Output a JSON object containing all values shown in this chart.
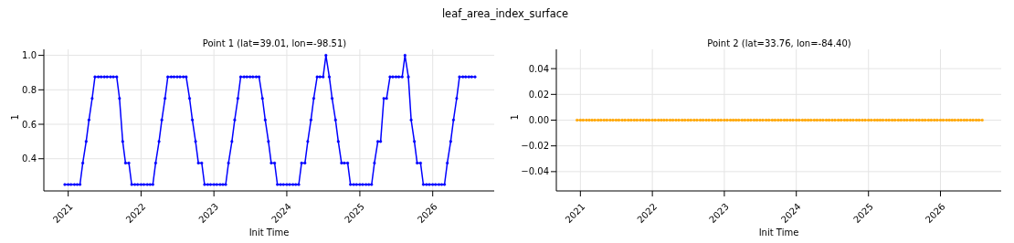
{
  "chart_data": [
    {
      "type": "line",
      "title": "Point 1 (lat=39.01, lon=-98.51)",
      "annotations": [
        "leaf_area_index_surface"
      ],
      "xlabel": "Init Time",
      "ylabel": "1",
      "x": [
        "2020-12-15",
        "2021-01-01",
        "2021-01-15",
        "2021-02-01",
        "2021-02-15",
        "2021-03-01",
        "2021-03-15",
        "2021-04-01",
        "2021-04-15",
        "2021-05-01",
        "2021-05-15",
        "2021-06-01",
        "2021-06-15",
        "2021-07-01",
        "2021-07-15",
        "2021-08-01",
        "2021-08-15",
        "2021-09-01",
        "2021-09-15",
        "2021-10-01",
        "2021-10-15",
        "2021-11-01",
        "2021-11-15",
        "2021-12-01",
        "2021-12-15",
        "2022-01-01",
        "2022-01-15",
        "2022-02-01",
        "2022-02-15",
        "2022-03-01",
        "2022-03-15",
        "2022-04-01",
        "2022-04-15",
        "2022-05-01",
        "2022-05-15",
        "2022-06-01",
        "2022-06-15",
        "2022-07-01",
        "2022-07-15",
        "2022-08-01",
        "2022-08-15",
        "2022-09-01",
        "2022-09-15",
        "2022-10-01",
        "2022-10-15",
        "2022-11-01",
        "2022-11-15",
        "2022-12-01",
        "2022-12-15",
        "2023-01-01",
        "2023-01-15",
        "2023-02-01",
        "2023-02-15",
        "2023-03-01",
        "2023-03-15",
        "2023-04-01",
        "2023-04-15",
        "2023-05-01",
        "2023-05-15",
        "2023-06-01",
        "2023-06-15",
        "2023-07-01",
        "2023-07-15",
        "2023-08-01",
        "2023-08-15",
        "2023-09-01",
        "2023-09-15",
        "2023-10-01",
        "2023-10-15",
        "2023-11-01",
        "2023-11-15",
        "2023-12-01",
        "2023-12-15",
        "2024-01-01",
        "2024-01-15",
        "2024-02-01",
        "2024-02-15",
        "2024-03-01",
        "2024-03-15",
        "2024-04-01",
        "2024-04-15",
        "2024-05-01",
        "2024-05-15",
        "2024-06-01",
        "2024-06-15",
        "2024-07-01",
        "2024-07-15",
        "2024-08-01",
        "2024-08-15",
        "2024-09-01",
        "2024-09-15",
        "2024-10-01",
        "2024-10-15",
        "2024-11-01",
        "2024-11-15",
        "2024-12-01",
        "2024-12-15",
        "2025-01-01",
        "2025-01-15",
        "2025-02-01",
        "2025-02-15",
        "2025-03-01",
        "2025-03-15",
        "2025-04-01",
        "2025-04-15",
        "2025-05-01",
        "2025-05-15",
        "2025-06-01",
        "2025-06-15",
        "2025-07-01",
        "2025-07-15",
        "2025-08-01",
        "2025-08-15",
        "2025-09-01",
        "2025-09-15",
        "2025-10-01",
        "2025-10-15",
        "2025-11-01",
        "2025-11-15",
        "2025-12-01",
        "2025-12-15",
        "2026-01-01",
        "2026-01-15",
        "2026-02-01",
        "2026-02-15",
        "2026-03-01",
        "2026-03-15",
        "2026-04-01",
        "2026-04-15",
        "2026-05-01",
        "2026-05-15",
        "2026-06-01",
        "2026-06-15",
        "2026-07-01",
        "2026-07-15",
        "2026-08-01"
      ],
      "series": [
        {
          "color": "#0000ff",
          "values": [
            0.25,
            0.25,
            0.25,
            0.25,
            0.25,
            0.25,
            0.375,
            0.5,
            0.625,
            0.75,
            0.875,
            0.875,
            0.875,
            0.875,
            0.875,
            0.875,
            0.875,
            0.875,
            0.75,
            0.5,
            0.375,
            0.375,
            0.25,
            0.25,
            0.25,
            0.25,
            0.25,
            0.25,
            0.25,
            0.25,
            0.375,
            0.5,
            0.625,
            0.75,
            0.875,
            0.875,
            0.875,
            0.875,
            0.875,
            0.875,
            0.875,
            0.75,
            0.625,
            0.5,
            0.375,
            0.375,
            0.25,
            0.25,
            0.25,
            0.25,
            0.25,
            0.25,
            0.25,
            0.25,
            0.375,
            0.5,
            0.625,
            0.75,
            0.875,
            0.875,
            0.875,
            0.875,
            0.875,
            0.875,
            0.875,
            0.75,
            0.625,
            0.5,
            0.375,
            0.375,
            0.25,
            0.25,
            0.25,
            0.25,
            0.25,
            0.25,
            0.25,
            0.25,
            0.375,
            0.375,
            0.5,
            0.625,
            0.75,
            0.875,
            0.875,
            0.875,
            1.0,
            0.875,
            0.75,
            0.625,
            0.5,
            0.375,
            0.375,
            0.375,
            0.25,
            0.25,
            0.25,
            0.25,
            0.25,
            0.25,
            0.25,
            0.25,
            0.375,
            0.5,
            0.5,
            0.75,
            0.75,
            0.875,
            0.875,
            0.875,
            0.875,
            0.875,
            1.0,
            0.875,
            0.625,
            0.5,
            0.375,
            0.375,
            0.25,
            0.25,
            0.25,
            0.25,
            0.25,
            0.25,
            0.25,
            0.25,
            0.375,
            0.5,
            0.625,
            0.75,
            0.875,
            0.875,
            0.875,
            0.875,
            0.875,
            0.875
          ]
        }
      ],
      "xlim": [
        "2020-09-01",
        "2026-11-05"
      ],
      "xticks": [
        "2021",
        "2022",
        "2023",
        "2024",
        "2025",
        "2026"
      ],
      "ylim": [
        0.213,
        1.035
      ],
      "yticks": [
        {
          "value": 0.4,
          "label": "0.4"
        },
        {
          "value": 0.6,
          "label": "0.6"
        },
        {
          "value": 0.8,
          "label": "0.8"
        },
        {
          "value": 1,
          "label": "1.0"
        }
      ],
      "grid": true,
      "legend": false,
      "marker": "circle",
      "line_style": "solid"
    },
    {
      "type": "line",
      "title": "Point 2 (lat=33.76, lon=-84.40)",
      "xlabel": "Init Time",
      "ylabel": "1",
      "x": [
        "2020-12-15",
        "2021-01-01",
        "2021-01-15",
        "2021-02-01",
        "2021-02-15",
        "2021-03-01",
        "2021-03-15",
        "2021-04-01",
        "2021-04-15",
        "2021-05-01",
        "2021-05-15",
        "2021-06-01",
        "2021-06-15",
        "2021-07-01",
        "2021-07-15",
        "2021-08-01",
        "2021-08-15",
        "2021-09-01",
        "2021-09-15",
        "2021-10-01",
        "2021-10-15",
        "2021-11-01",
        "2021-11-15",
        "2021-12-01",
        "2021-12-15",
        "2022-01-01",
        "2022-01-15",
        "2022-02-01",
        "2022-02-15",
        "2022-03-01",
        "2022-03-15",
        "2022-04-01",
        "2022-04-15",
        "2022-05-01",
        "2022-05-15",
        "2022-06-01",
        "2022-06-15",
        "2022-07-01",
        "2022-07-15",
        "2022-08-01",
        "2022-08-15",
        "2022-09-01",
        "2022-09-15",
        "2022-10-01",
        "2022-10-15",
        "2022-11-01",
        "2022-11-15",
        "2022-12-01",
        "2022-12-15",
        "2023-01-01",
        "2023-01-15",
        "2023-02-01",
        "2023-02-15",
        "2023-03-01",
        "2023-03-15",
        "2023-04-01",
        "2023-04-15",
        "2023-05-01",
        "2023-05-15",
        "2023-06-01",
        "2023-06-15",
        "2023-07-01",
        "2023-07-15",
        "2023-08-01",
        "2023-08-15",
        "2023-09-01",
        "2023-09-15",
        "2023-10-01",
        "2023-10-15",
        "2023-11-01",
        "2023-11-15",
        "2023-12-01",
        "2023-12-15",
        "2024-01-01",
        "2024-01-15",
        "2024-02-01",
        "2024-02-15",
        "2024-03-01",
        "2024-03-15",
        "2024-04-01",
        "2024-04-15",
        "2024-05-01",
        "2024-05-15",
        "2024-06-01",
        "2024-06-15",
        "2024-07-01",
        "2024-07-15",
        "2024-08-01",
        "2024-08-15",
        "2024-09-01",
        "2024-09-15",
        "2024-10-01",
        "2024-10-15",
        "2024-11-01",
        "2024-11-15",
        "2024-12-01",
        "2024-12-15",
        "2025-01-01",
        "2025-01-15",
        "2025-02-01",
        "2025-02-15",
        "2025-03-01",
        "2025-03-15",
        "2025-04-01",
        "2025-04-15",
        "2025-05-01",
        "2025-05-15",
        "2025-06-01",
        "2025-06-15",
        "2025-07-01",
        "2025-07-15",
        "2025-08-01",
        "2025-08-15",
        "2025-09-01",
        "2025-09-15",
        "2025-10-01",
        "2025-10-15",
        "2025-11-01",
        "2025-11-15",
        "2025-12-01",
        "2025-12-15",
        "2026-01-01",
        "2026-01-15",
        "2026-02-01",
        "2026-02-15",
        "2026-03-01",
        "2026-03-15",
        "2026-04-01",
        "2026-04-15",
        "2026-05-01",
        "2026-05-15",
        "2026-06-01",
        "2026-06-15",
        "2026-07-01",
        "2026-07-15",
        "2026-08-01"
      ],
      "series": [
        {
          "color": "#ffa500",
          "values": [
            0,
            0,
            0,
            0,
            0,
            0,
            0,
            0,
            0,
            0,
            0,
            0,
            0,
            0,
            0,
            0,
            0,
            0,
            0,
            0,
            0,
            0,
            0,
            0,
            0,
            0,
            0,
            0,
            0,
            0,
            0,
            0,
            0,
            0,
            0,
            0,
            0,
            0,
            0,
            0,
            0,
            0,
            0,
            0,
            0,
            0,
            0,
            0,
            0,
            0,
            0,
            0,
            0,
            0,
            0,
            0,
            0,
            0,
            0,
            0,
            0,
            0,
            0,
            0,
            0,
            0,
            0,
            0,
            0,
            0,
            0,
            0,
            0,
            0,
            0,
            0,
            0,
            0,
            0,
            0,
            0,
            0,
            0,
            0,
            0,
            0,
            0,
            0,
            0,
            0,
            0,
            0,
            0,
            0,
            0,
            0,
            0,
            0,
            0,
            0,
            0,
            0,
            0,
            0,
            0,
            0,
            0,
            0,
            0,
            0,
            0,
            0,
            0,
            0,
            0,
            0,
            0,
            0,
            0,
            0,
            0,
            0,
            0,
            0,
            0,
            0,
            0,
            0,
            0,
            0,
            0,
            0,
            0,
            0,
            0,
            0
          ]
        }
      ],
      "xlim": [
        "2020-09-01",
        "2026-11-05"
      ],
      "xticks": [
        "2021",
        "2022",
        "2023",
        "2024",
        "2025",
        "2026"
      ],
      "ylim": [
        -0.055,
        0.055
      ],
      "yticks": [
        {
          "value": -0.04,
          "label": "−0.04"
        },
        {
          "value": -0.02,
          "label": "−0.02"
        },
        {
          "value": 0,
          "label": "0.00"
        },
        {
          "value": 0.02,
          "label": "0.02"
        },
        {
          "value": 0.04,
          "label": "0.04"
        }
      ],
      "grid": true,
      "legend": false,
      "marker": "circle",
      "line_style": "solid"
    }
  ]
}
